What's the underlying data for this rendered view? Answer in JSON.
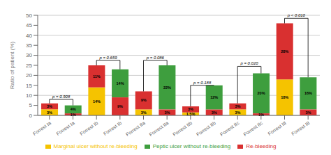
{
  "chart_data": {
    "type": "bar",
    "stacked": true,
    "grid": true,
    "data_labels": true,
    "ylabel": "Ratio of patient (%)",
    "ylim": [
      0,
      50
    ],
    "yticks": [
      0,
      5,
      10,
      15,
      20,
      25,
      30,
      35,
      40,
      45,
      50
    ],
    "categories": [
      "Forrest Ia",
      "Forrest Ia",
      "Forrest Ib",
      "Forrest Ib",
      "Forrest IIa",
      "Forrest IIa",
      "Forrest IIb",
      "Forrest IIb",
      "Forrest IIc",
      "Forrest IIc",
      "Forrest III",
      "Forrest III"
    ],
    "series": [
      {
        "name": "Marginal ulcer without re-bleeding",
        "color": "#F5C300",
        "values": [
          3,
          0,
          14,
          0,
          3,
          0,
          1.5,
          0,
          3,
          0,
          18,
          0
        ],
        "value_labels": [
          "3%",
          null,
          "14%",
          null,
          "3%",
          null,
          "1.5%",
          null,
          "3%",
          null,
          "18%",
          null
        ]
      },
      {
        "name": "Re-bleeding",
        "color": "#D93030",
        "values": [
          3,
          1,
          11,
          9,
          9,
          3,
          3,
          3,
          3,
          1,
          28,
          3
        ],
        "value_labels": [
          "3%",
          "1%",
          "11%",
          "9%",
          "9%",
          "3%",
          "3%",
          "3%",
          "3%",
          "1%",
          "28%",
          "3%"
        ]
      },
      {
        "name": "Peptic ulcer without re-bleeding",
        "color": "#3E9E3E",
        "values": [
          0,
          4,
          0,
          14,
          0,
          22,
          0,
          12,
          0,
          20,
          0,
          16
        ],
        "value_labels": [
          null,
          "4%",
          null,
          "14%",
          null,
          "22%",
          null,
          "12%",
          null,
          "20%",
          null,
          "16%"
        ]
      }
    ],
    "annotations": [
      {
        "text": "p = 0.908",
        "x1": 0,
        "x2": 1,
        "y": 8.0
      },
      {
        "text": "p = 0.659",
        "x1": 2,
        "x2": 3,
        "y": 27.5
      },
      {
        "text": "p = 0.086",
        "x1": 4,
        "x2": 5,
        "y": 27.5
      },
      {
        "text": "p = 0.188",
        "x1": 6,
        "x2": 7,
        "y": 15.0
      },
      {
        "text": "p = 0.020",
        "x1": 8,
        "x2": 9,
        "y": 24.5
      },
      {
        "text": "p < 0.010",
        "x1": 10,
        "x2": 11,
        "y": 48.5
      }
    ]
  }
}
